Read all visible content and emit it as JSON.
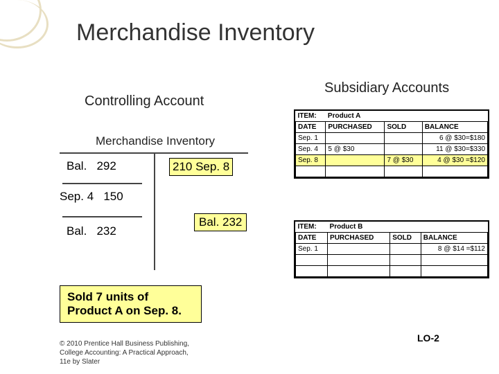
{
  "title": "Merchandise Inventory",
  "controlling": {
    "heading": "Controlling Account",
    "label": "Merchandise Inventory",
    "entries": {
      "bal_top": "Bal.   292",
      "row_right": "210  Sep. 8",
      "sep4": "Sep. 4   150",
      "bal_bottom": "Bal.   232"
    },
    "bal232_note": "Bal. 232"
  },
  "subsidiary": {
    "heading": "Subsidiary Accounts",
    "productA": {
      "item_label": "ITEM:",
      "item_name": "Product A",
      "headers": [
        "DATE",
        "PURCHASED",
        "SOLD",
        "BALANCE"
      ],
      "rows": [
        {
          "date": "Sep. 1",
          "purchased": "",
          "sold": "",
          "balance": "6 @ $30=$180"
        },
        {
          "date": "Sep. 4",
          "purchased": "5 @ $30",
          "sold": "",
          "balance": "11 @ $30=$330"
        },
        {
          "date": "Sep. 8",
          "purchased": "",
          "sold": "7 @ $30",
          "balance": "4 @ $30 =$120"
        }
      ]
    },
    "productB": {
      "item_label": "ITEM:",
      "item_name": "Product B",
      "headers": [
        "DATE",
        "PURCHASED",
        "SOLD",
        "BALANCE"
      ],
      "rows": [
        {
          "date": "Sep. 1",
          "purchased": "",
          "sold": "",
          "balance": "8 @ $14 =$112"
        }
      ]
    }
  },
  "sold_box": "Sold 7 units of Product A on Sep. 8.",
  "lo": "LO-2",
  "copyright": "© 2010 Prentice Hall Business Publishing, College Accounting: A Practical Approach, 11e by Slater",
  "style": {
    "highlight_bg": "#ffff99",
    "border_color": "#000000",
    "title_color": "#333333",
    "circle_color": "#e8dfc2"
  }
}
